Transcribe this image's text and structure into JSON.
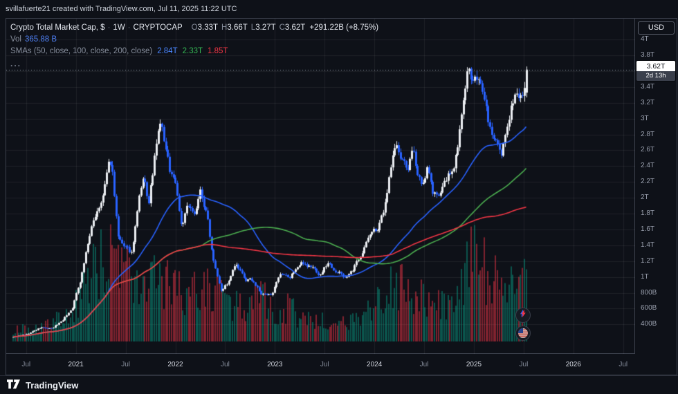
{
  "attribution": "svillafuerte21 created with TradingView.com, Jul 11, 2025 11:22 UTC",
  "legend": {
    "symbol": "Crypto Total Market Cap, $",
    "separator": "·",
    "interval": "1W",
    "exchange": "CRYPTOCAP",
    "ohlc": {
      "o_label": "O",
      "o": "3.33T",
      "h_label": "H",
      "h": "3.66T",
      "l_label": "L",
      "l": "3.27T",
      "c_label": "C",
      "c": "3.62T",
      "change": "+291.22B (+8.75%)"
    },
    "vol_label": "Vol",
    "vol_value": "365.88 B",
    "smas_label": "SMAs (50, close, 100, close, 200, close)",
    "sma50": "2.84T",
    "sma100": "2.33T",
    "sma200": "1.85T",
    "more": "..."
  },
  "axis": {
    "currency": "USD",
    "price_label": "3.62T",
    "countdown": "2d 13h"
  },
  "footer": {
    "brand": "TradingView"
  },
  "colors": {
    "up": "#eceff3",
    "down": "#2962ff",
    "sma50": "#2962ff",
    "sma100": "#4caf50",
    "sma200": "#f23645",
    "vol_up": "#089981",
    "vol_down": "#f23645",
    "vol_alpha": 0.5,
    "grid": "rgba(255,255,255,0.07)",
    "price_line": "#9aa0ae"
  },
  "chart_data": {
    "type": "candlestick",
    "title": "Crypto Total Market Cap (CRYPTOCAP), weekly, with volume and SMA 50/100/200",
    "x_range": [
      2020.3,
      2026.62
    ],
    "y_range_trillions": [
      0.027,
      4.264
    ],
    "data_start": 2020.37,
    "data_end": 2025.53,
    "week_step_years": 0.019165,
    "seed": 9,
    "current_price_trillions": 3.62,
    "last_ohlc_trillions": {
      "open": 3.33,
      "high": 3.66,
      "low": 3.27,
      "close": 3.62
    },
    "volume_current_billions": 365.88,
    "volume_scale_max_billions": 1700,
    "sma_values_trillions": {
      "sma50": 2.84,
      "sma100": 2.33,
      "sma200": 1.85
    },
    "y_ticks": [
      {
        "v": 4.0,
        "label": "4T"
      },
      {
        "v": 3.8,
        "label": "3.8T"
      },
      {
        "v": 3.6,
        "label": "3.6T"
      },
      {
        "v": 3.4,
        "label": "3.4T"
      },
      {
        "v": 3.2,
        "label": "3.2T"
      },
      {
        "v": 3.0,
        "label": "3T"
      },
      {
        "v": 2.8,
        "label": "2.8T"
      },
      {
        "v": 2.6,
        "label": "2.6T"
      },
      {
        "v": 2.4,
        "label": "2.4T"
      },
      {
        "v": 2.2,
        "label": "2.2T"
      },
      {
        "v": 2.0,
        "label": "2T"
      },
      {
        "v": 1.8,
        "label": "1.8T"
      },
      {
        "v": 1.6,
        "label": "1.6T"
      },
      {
        "v": 1.4,
        "label": "1.4T"
      },
      {
        "v": 1.2,
        "label": "1.2T"
      },
      {
        "v": 1.0,
        "label": "1T"
      },
      {
        "v": 0.8,
        "label": "800B"
      },
      {
        "v": 0.6,
        "label": "600B"
      },
      {
        "v": 0.4,
        "label": "400B"
      }
    ],
    "x_ticks": [
      {
        "t": 2020.5,
        "label": "Jul",
        "major": false
      },
      {
        "t": 2021.0,
        "label": "2021",
        "major": true
      },
      {
        "t": 2021.5,
        "label": "Jul",
        "major": false
      },
      {
        "t": 2022.0,
        "label": "2022",
        "major": true
      },
      {
        "t": 2022.5,
        "label": "Jul",
        "major": false
      },
      {
        "t": 2023.0,
        "label": "2023",
        "major": true
      },
      {
        "t": 2023.5,
        "label": "Jul",
        "major": false
      },
      {
        "t": 2024.0,
        "label": "2024",
        "major": true
      },
      {
        "t": 2024.5,
        "label": "Jul",
        "major": false
      },
      {
        "t": 2025.0,
        "label": "2025",
        "major": true
      },
      {
        "t": 2025.5,
        "label": "Jul",
        "major": false
      },
      {
        "t": 2026.0,
        "label": "2026",
        "major": true
      },
      {
        "t": 2026.5,
        "label": "Jul",
        "major": false
      }
    ],
    "price_path": [
      [
        2020.37,
        0.245
      ],
      [
        2020.5,
        0.27
      ],
      [
        2020.65,
        0.36
      ],
      [
        2020.76,
        0.34
      ],
      [
        2020.86,
        0.45
      ],
      [
        2020.96,
        0.6
      ],
      [
        2021.04,
        0.95
      ],
      [
        2021.12,
        1.45
      ],
      [
        2021.2,
        1.8
      ],
      [
        2021.27,
        2.0
      ],
      [
        2021.33,
        2.45
      ],
      [
        2021.37,
        2.3
      ],
      [
        2021.42,
        1.5
      ],
      [
        2021.49,
        1.35
      ],
      [
        2021.56,
        1.3
      ],
      [
        2021.63,
        1.95
      ],
      [
        2021.68,
        2.2
      ],
      [
        2021.73,
        1.9
      ],
      [
        2021.79,
        2.5
      ],
      [
        2021.85,
        2.95
      ],
      [
        2021.9,
        2.6
      ],
      [
        2021.94,
        2.35
      ],
      [
        2022.0,
        2.2
      ],
      [
        2022.06,
        1.65
      ],
      [
        2022.12,
        1.9
      ],
      [
        2022.18,
        1.75
      ],
      [
        2022.25,
        2.1
      ],
      [
        2022.32,
        1.75
      ],
      [
        2022.37,
        1.3
      ],
      [
        2022.46,
        0.85
      ],
      [
        2022.54,
        0.95
      ],
      [
        2022.6,
        1.15
      ],
      [
        2022.7,
        0.95
      ],
      [
        2022.78,
        0.95
      ],
      [
        2022.86,
        0.78
      ],
      [
        2022.95,
        0.76
      ],
      [
        2023.05,
        1.0
      ],
      [
        2023.15,
        0.98
      ],
      [
        2023.2,
        1.1
      ],
      [
        2023.28,
        1.18
      ],
      [
        2023.38,
        1.12
      ],
      [
        2023.45,
        1.02
      ],
      [
        2023.53,
        1.18
      ],
      [
        2023.62,
        1.08
      ],
      [
        2023.7,
        1.0
      ],
      [
        2023.78,
        1.06
      ],
      [
        2023.87,
        1.32
      ],
      [
        2023.96,
        1.55
      ],
      [
        2024.04,
        1.62
      ],
      [
        2024.1,
        1.85
      ],
      [
        2024.16,
        2.4
      ],
      [
        2024.21,
        2.7
      ],
      [
        2024.27,
        2.45
      ],
      [
        2024.33,
        2.35
      ],
      [
        2024.38,
        2.55
      ],
      [
        2024.44,
        2.3
      ],
      [
        2024.5,
        2.15
      ],
      [
        2024.54,
        2.4
      ],
      [
        2024.59,
        1.98
      ],
      [
        2024.66,
        2.1
      ],
      [
        2024.73,
        2.25
      ],
      [
        2024.8,
        2.35
      ],
      [
        2024.85,
        2.8
      ],
      [
        2024.9,
        3.3
      ],
      [
        2024.94,
        3.65
      ],
      [
        2024.98,
        3.35
      ],
      [
        2025.03,
        3.5
      ],
      [
        2025.07,
        3.55
      ],
      [
        2025.11,
        3.2
      ],
      [
        2025.16,
        2.9
      ],
      [
        2025.21,
        2.7
      ],
      [
        2025.27,
        2.45
      ],
      [
        2025.32,
        2.8
      ],
      [
        2025.37,
        3.2
      ],
      [
        2025.41,
        3.3
      ],
      [
        2025.45,
        3.2
      ],
      [
        2025.49,
        3.25
      ],
      [
        2025.53,
        3.62
      ]
    ],
    "volume_path_billions": [
      [
        2020.37,
        55
      ],
      [
        2020.7,
        75
      ],
      [
        2020.95,
        140
      ],
      [
        2021.05,
        280
      ],
      [
        2021.2,
        380
      ],
      [
        2021.33,
        430
      ],
      [
        2021.45,
        420
      ],
      [
        2021.6,
        280
      ],
      [
        2021.8,
        310
      ],
      [
        2021.95,
        280
      ],
      [
        2022.1,
        240
      ],
      [
        2022.35,
        270
      ],
      [
        2022.5,
        230
      ],
      [
        2022.7,
        160
      ],
      [
        2022.87,
        240
      ],
      [
        2023.0,
        120
      ],
      [
        2023.1,
        170
      ],
      [
        2023.3,
        120
      ],
      [
        2023.5,
        95
      ],
      [
        2023.7,
        85
      ],
      [
        2023.9,
        150
      ],
      [
        2024.1,
        230
      ],
      [
        2024.2,
        330
      ],
      [
        2024.4,
        230
      ],
      [
        2024.6,
        190
      ],
      [
        2024.8,
        230
      ],
      [
        2024.94,
        440
      ],
      [
        2025.05,
        390
      ],
      [
        2025.2,
        310
      ],
      [
        2025.32,
        260
      ],
      [
        2025.45,
        290
      ],
      [
        2025.53,
        366
      ]
    ]
  }
}
